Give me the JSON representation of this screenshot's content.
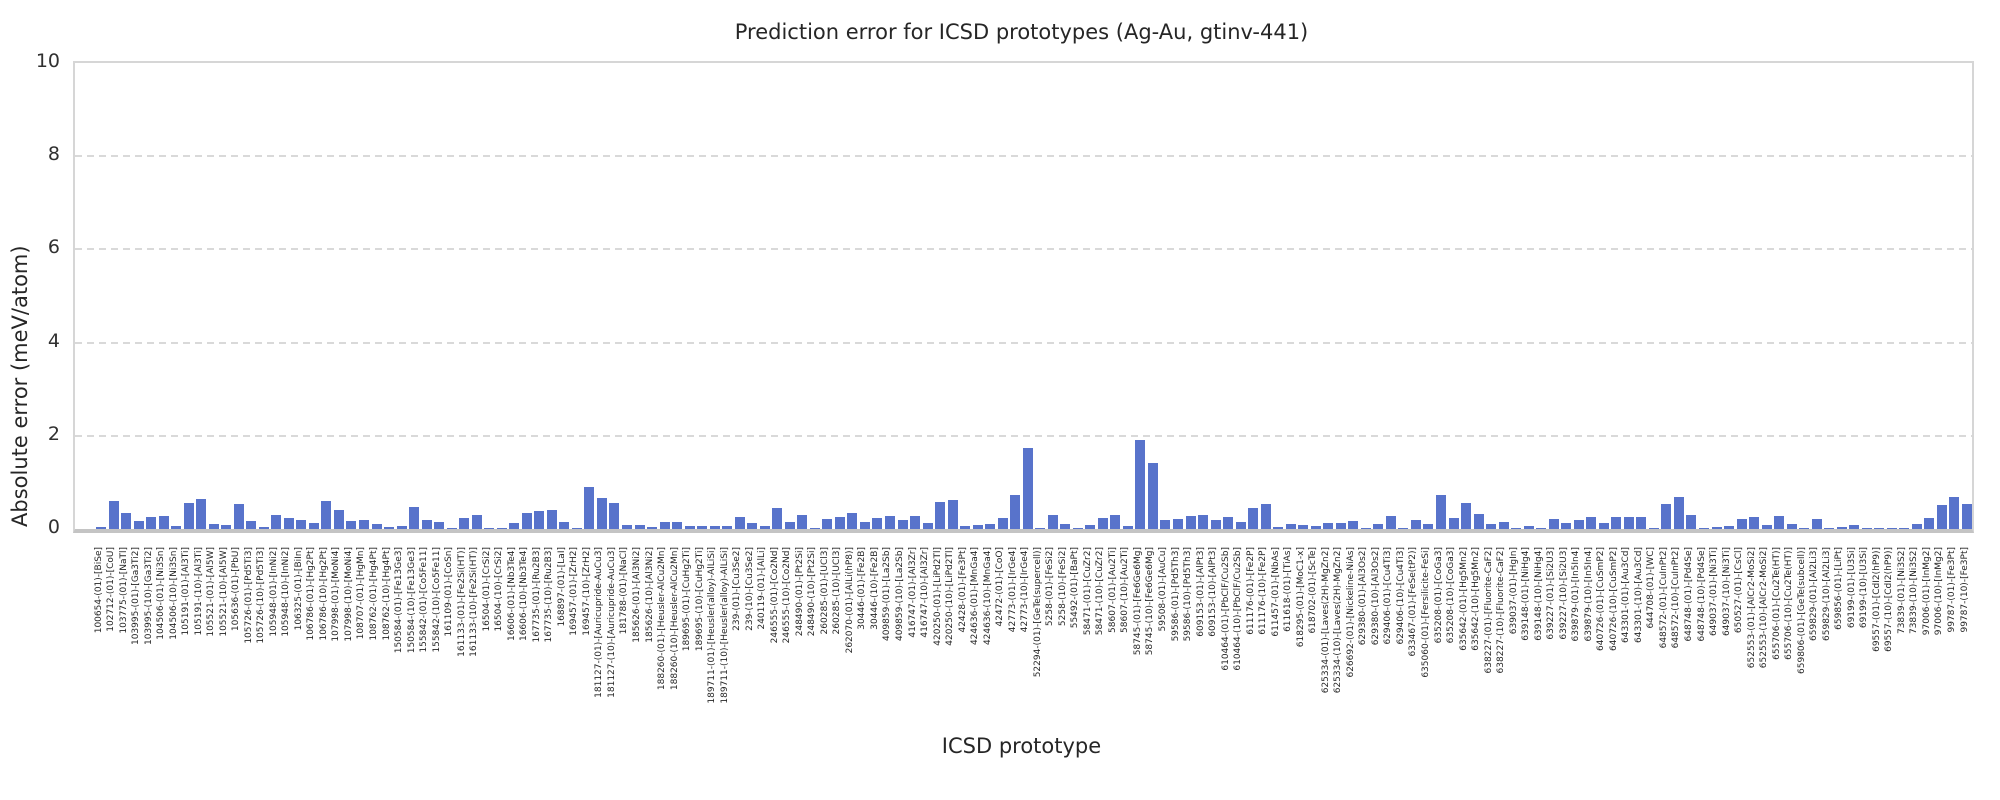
{
  "title": "Prediction error for ICSD prototypes (Ag-Au, gtinv-441)",
  "colors": {
    "bar": "#5873cb",
    "grid": "#d9d9d9",
    "spine": "#c4c4c4",
    "text": "#262626"
  },
  "chart_data": {
    "type": "bar",
    "title": "Prediction error for ICSD prototypes (Ag-Au, gtinv-441)",
    "xlabel": "ICSD prototype",
    "ylabel": "Absolute error (meV/atom)",
    "ylim": [
      0,
      10
    ],
    "yticks": [
      0,
      2,
      4,
      6,
      8,
      10
    ],
    "grid": "horizontal-dashed",
    "legend": "none",
    "categories": [
      "100654-(01)-[BiSe]",
      "102712-(01)-[CoU]",
      "103775-(01)-[NaTl]",
      "103995-(01)-[Ga3Ti2]",
      "103995-(10)-[Ga3Ti2]",
      "104506-(01)-[Ni3Sn]",
      "104506-(10)-[Ni3Sn]",
      "105191-(01)-[Al3Ti]",
      "105191-(10)-[Al3Ti]",
      "105521-(01)-[Al5W]",
      "105521-(10)-[Al5W]",
      "105636-(01)-[PbU]",
      "105726-(01)-[Pd5Ti3]",
      "105726-(10)-[Pd5Ti3]",
      "105948-(01)-[InNi2]",
      "105948-(10)-[InNi2]",
      "106325-(01)-[BiIn]",
      "106786-(01)-[Hg2Pt]",
      "106786-(10)-[Hg2Pt]",
      "107998-(01)-[MoNi4]",
      "107998-(10)-[MoNi4]",
      "108707-(01)-[HgMn]",
      "108762-(01)-[Hg4Pt]",
      "108762-(10)-[Hg4Pt]",
      "150584-(01)-[Fe13Ge3]",
      "150584-(10)-[Fe13Ge3]",
      "155842-(01)-[Co5Fe11]",
      "155842-(10)-[Co5Fe11]",
      "161109-(01)-[CoSn]",
      "161133-(01)-[Fe2Si(HT)]",
      "161133-(10)-[Fe2Si(HT)]",
      "16504-(01)-[CrSi2]",
      "16504-(10)-[CrSi2]",
      "16606-(01)-[Nb3Te4]",
      "16606-(10)-[Nb3Te4]",
      "167735-(01)-[Ru2B3]",
      "167735-(10)-[Ru2B3]",
      "168897-(01)-[LaI]",
      "169457-(01)-[ZrH2]",
      "169457-(10)-[ZrH2]",
      "181127-(01)-[Auricupride-AuCu3]",
      "181127-(10)-[Auricupride-AuCu3]",
      "181788-(01)-[NaCl]",
      "185626-(01)-[Al3Ni2]",
      "185626-(10)-[Al3Ni2]",
      "188260-(01)-[Heusler-AlCu2Mn]",
      "188260-(10)-[Heusler-AlCu2Mn]",
      "189695-(01)-[CuHg2Ti]",
      "189695-(10)-[CuHg2Ti]",
      "189711-(01)-[Heusler(alloy)-AlLiSi]",
      "189711-(10)-[Heusler(alloy)-AlLiSi]",
      "239-(01)-[Cu3Se2]",
      "239-(10)-[Cu3Se2]",
      "240119-(01)-[AlLi]",
      "246555-(01)-[Co2Nd]",
      "246555-(10)-[Co2Nd]",
      "248490-(01)-[Pt2Si]",
      "248490-(10)-[Pt2Si]",
      "260285-(01)-[UCl3]",
      "260285-(10)-[UCl3]",
      "262070-(01)-[AlLi(hP8)]",
      "30446-(01)-[Fe2B]",
      "30446-(10)-[Fe2B]",
      "409859-(01)-[La2Sb]",
      "409859-(10)-[La2Sb]",
      "416747-(01)-[Al3Zr]",
      "416747-(10)-[Al3Zr]",
      "420250-(01)-[LiPd2Tl]",
      "420250-(10)-[LiPd2Tl]",
      "42428-(01)-[Fe3Pt]",
      "424636-(01)-[MnGa4]",
      "424636-(10)-[MnGa4]",
      "42472-(01)-[CoO]",
      "42773-(01)-[IrGe4]",
      "42773-(10)-[IrGe4]",
      "52294-(01)-[GeTe(supercell)]",
      "5258-(01)-[FeSi2]",
      "5258-(10)-[FeSi2]",
      "55492-(01)-[BaPt]",
      "58471-(01)-[CuZr2]",
      "58471-(10)-[CuZr2]",
      "58607-(01)-[Au2Ti]",
      "58607-(10)-[Au2Ti]",
      "58745-(01)-[Fe6Ge6Mg]",
      "58745-(10)-[Fe6Ge6Mg]",
      "59508-(01)-[AuCu]",
      "59586-(01)-[Pd5Th3]",
      "59586-(10)-[Pd5Th3]",
      "609153-(01)-[AlPt3]",
      "609153-(10)-[AlPt3]",
      "610464-(01)-[PbClF/Cu2Sb]",
      "610464-(10)-[PbClF/Cu2Sb]",
      "611176-(01)-[Fe2P]",
      "611176-(10)-[Fe2P]",
      "611457-(01)-[NbAs]",
      "611618-(01)-[TiAs]",
      "618295-(01)-[MoC1-x]",
      "618702-(01)-[ScTe]",
      "625334-(01)-[Laves(2H)-MgZn2]",
      "625334-(10)-[Laves(2H)-MgZn2]",
      "626692-(01)-[Nickeline-NiAs]",
      "629380-(01)-[Al3Os2]",
      "629380-(10)-[Al3Os2]",
      "629406-(01)-[Cu4Ti3]",
      "629406-(10)-[Cu4Ti3]",
      "633467-(01)-[FeSe(tP2)]",
      "635060-(01)-[Fersilicite-FeSi]",
      "635208-(01)-[CoGa3]",
      "635208-(10)-[CoGa3]",
      "635642-(01)-[Hg5Mn2]",
      "635642-(10)-[Hg5Mn2]",
      "638227-(01)-[Fluorite-CaF2]",
      "638227-(10)-[Fluorite-CaF2]",
      "639037-(01)-[HgIn]",
      "639148-(01)-[NiHg4]",
      "639148-(10)-[NiHg4]",
      "639227-(01)-[Si2U3]",
      "639227-(10)-[Si2U3]",
      "639879-(01)-[In5In4]",
      "639879-(10)-[In5In4]",
      "640726-(01)-[CuSmP2]",
      "640726-(10)-[CuSmP2]",
      "643301-(01)-[Au3Cd]",
      "643301-(10)-[Au3Cd]",
      "644708-(01)-[WC]",
      "648572-(01)-[CuInPt2]",
      "648572-(10)-[CuInPt2]",
      "648748-(01)-[Pd4Se]",
      "648748-(10)-[Pd4Se]",
      "649037-(01)-[Ni3Ti]",
      "649037-(10)-[Ni3Ti]",
      "650527-(01)-[CsCl]",
      "652553-(01)-[AlCr2-MoSi2]",
      "652553-(10)-[AlCr2-MoSi2]",
      "655706-(01)-[Cu2Te(HT)]",
      "655706-(10)-[Cu2Te(HT)]",
      "659806-(01)-[GeTe(subcell)]",
      "659829-(01)-[Al2Li3]",
      "659829-(10)-[Al2Li3]",
      "659856-(01)-[LiPt]",
      "69199-(01)-[U3Si]",
      "69199-(10)-[U3Si]",
      "69557-(01)-[CdI2(hP9)]",
      "69557-(10)-[CdI2(hP9)]",
      "73839-(01)-[Ni3S2]",
      "73839-(10)-[Ni3S2]",
      "97006-(01)-[InMg2]",
      "97006-(10)-[InMg2]",
      "99787-(01)-[Fe3Pt]",
      "99787-(10)-[Fe3Pt]"
    ],
    "values": [
      0.05,
      0.6,
      0.34,
      0.18,
      0.25,
      0.28,
      0.07,
      0.55,
      0.65,
      0.11,
      0.08,
      0.53,
      0.18,
      0.04,
      0.3,
      0.23,
      0.19,
      0.13,
      0.6,
      0.4,
      0.17,
      0.2,
      0.1,
      0.04,
      0.06,
      0.48,
      0.19,
      0.16,
      0.02,
      0.23,
      0.3,
      0.03,
      0.03,
      0.12,
      0.35,
      0.39,
      0.41,
      0.16,
      0.02,
      0.9,
      0.66,
      0.56,
      0.09,
      0.08,
      0.05,
      0.15,
      0.15,
      0.07,
      0.07,
      0.06,
      0.06,
      0.25,
      0.12,
      0.07,
      0.45,
      0.15,
      0.3,
      0.02,
      0.21,
      0.26,
      0.35,
      0.14,
      0.23,
      0.28,
      0.19,
      0.28,
      0.13,
      0.58,
      0.62,
      0.06,
      0.08,
      0.1,
      0.23,
      0.73,
      1.74,
      0.02,
      0.3,
      0.11,
      0.02,
      0.09,
      0.23,
      0.3,
      0.07,
      1.91,
      1.41,
      0.19,
      0.21,
      0.28,
      0.3,
      0.19,
      0.25,
      0.14,
      0.46,
      0.53,
      0.04,
      0.11,
      0.08,
      0.06,
      0.12,
      0.12,
      0.17,
      0.02,
      0.1,
      0.28,
      0.02,
      0.19,
      0.1,
      0.74,
      0.23,
      0.56,
      0.33,
      0.11,
      0.16,
      0.02,
      0.06,
      0.02,
      0.21,
      0.12,
      0.19,
      0.26,
      0.13,
      0.26,
      0.26,
      0.26,
      0.03,
      0.54,
      0.69,
      0.3,
      0.02,
      0.04,
      0.07,
      0.21,
      0.25,
      0.08,
      0.27,
      0.1,
      0.02,
      0.21,
      0.02,
      0.05,
      0.09,
      0.02,
      0.03,
      0.01,
      0.02,
      0.11,
      0.23,
      0.52,
      0.68,
      0.54
    ]
  }
}
